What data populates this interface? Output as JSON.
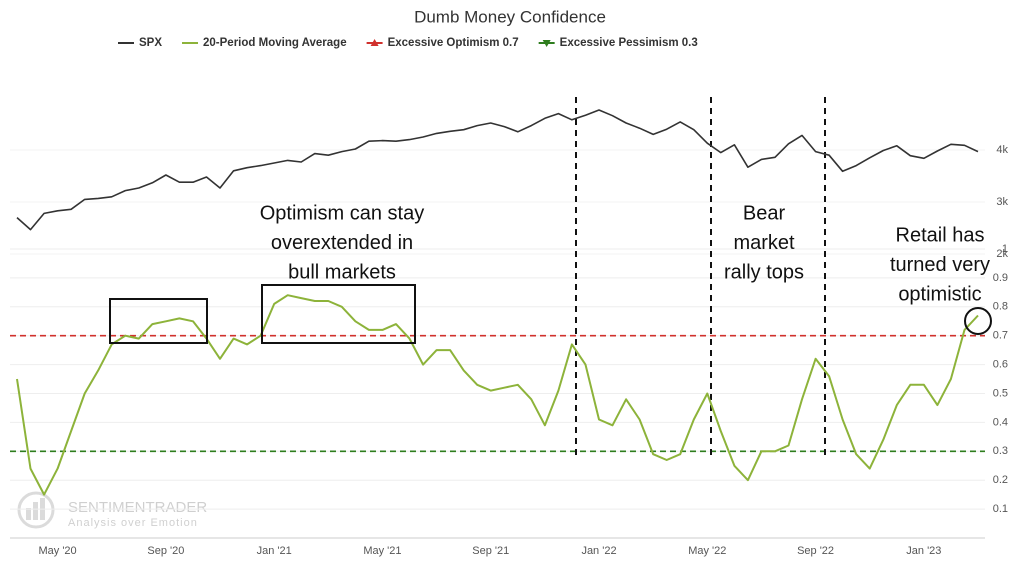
{
  "chart_data": {
    "type": "line",
    "title": "Dumb Money Confidence",
    "categories": [
      null,
      null,
      null,
      "May '20",
      null,
      null,
      null,
      null,
      null,
      null,
      null,
      "Sep '20",
      null,
      null,
      null,
      null,
      null,
      null,
      null,
      "Jan '21",
      null,
      null,
      null,
      null,
      null,
      null,
      null,
      "May '21",
      null,
      null,
      null,
      null,
      null,
      null,
      null,
      "Sep '21",
      null,
      null,
      null,
      null,
      null,
      null,
      null,
      "Jan '22",
      null,
      null,
      null,
      null,
      null,
      null,
      null,
      "May '22",
      null,
      null,
      null,
      null,
      null,
      null,
      null,
      "Sep '22",
      null,
      null,
      null,
      null,
      null,
      null,
      null,
      "Jan '23",
      null,
      null,
      null,
      null
    ],
    "series": [
      {
        "name": "SPX",
        "color": "#333333",
        "axis": "y2",
        "values": [
          2700,
          2470,
          2780,
          2830,
          2860,
          3050,
          3070,
          3100,
          3220,
          3270,
          3370,
          3520,
          3380,
          3380,
          3480,
          3270,
          3600,
          3660,
          3700,
          3750,
          3800,
          3770,
          3930,
          3900,
          3970,
          4020,
          4170,
          4180,
          4170,
          4200,
          4250,
          4320,
          4360,
          4390,
          4470,
          4520,
          4450,
          4350,
          4470,
          4610,
          4700,
          4580,
          4670,
          4770,
          4660,
          4520,
          4420,
          4300,
          4400,
          4540,
          4390,
          4130,
          3950,
          4100,
          3670,
          3820,
          3860,
          4120,
          4280,
          3970,
          3900,
          3590,
          3700,
          3850,
          3990,
          4080,
          3890,
          3840,
          3980,
          4110,
          4090,
          3970
        ]
      },
      {
        "name": "20-Period Moving Average",
        "color": "#8db33a",
        "values": [
          0.55,
          0.24,
          0.15,
          0.24,
          0.37,
          0.5,
          0.58,
          0.67,
          0.7,
          0.69,
          0.74,
          0.75,
          0.76,
          0.75,
          0.69,
          0.62,
          0.69,
          0.67,
          0.7,
          0.81,
          0.84,
          0.83,
          0.82,
          0.82,
          0.8,
          0.75,
          0.72,
          0.72,
          0.74,
          0.69,
          0.6,
          0.65,
          0.65,
          0.58,
          0.53,
          0.51,
          0.52,
          0.53,
          0.48,
          0.39,
          0.51,
          0.67,
          0.6,
          0.41,
          0.39,
          0.48,
          0.41,
          0.29,
          0.27,
          0.29,
          0.41,
          0.5,
          0.37,
          0.25,
          0.2,
          0.3,
          0.3,
          0.32,
          0.48,
          0.62,
          0.56,
          0.41,
          0.29,
          0.24,
          0.34,
          0.46,
          0.53,
          0.53,
          0.46,
          0.55,
          0.72,
          0.77
        ]
      }
    ],
    "reference_lines": [
      {
        "name": "Excessive Optimism 0.7",
        "value": 0.7,
        "color": "#d0312d"
      },
      {
        "name": "Excessive Pessimism 0.3",
        "value": 0.3,
        "color": "#2e7d1e"
      }
    ],
    "ylim": [
      0,
      1
    ],
    "yticks": [
      0.1,
      0.2,
      0.3,
      0.4,
      0.5,
      0.6,
      0.7,
      0.8,
      0.9,
      1
    ],
    "y2lim": [
      1900,
      5100
    ],
    "y2ticks": [
      {
        "value": 2000,
        "label": "2k"
      },
      {
        "value": 3000,
        "label": "3k"
      },
      {
        "value": 4000,
        "label": "4k"
      }
    ],
    "grid": true,
    "annotations": [
      {
        "lines": [
          "Optimism can stay",
          "overextended in",
          "bull markets"
        ]
      },
      {
        "lines": [
          "Bear",
          "market",
          "rally tops"
        ]
      },
      {
        "lines": [
          "Retail has",
          "turned very",
          "optimistic"
        ]
      }
    ],
    "watermark": {
      "name": "SENTIMENTRADER",
      "tagline": "Analysis over Emotion"
    }
  }
}
